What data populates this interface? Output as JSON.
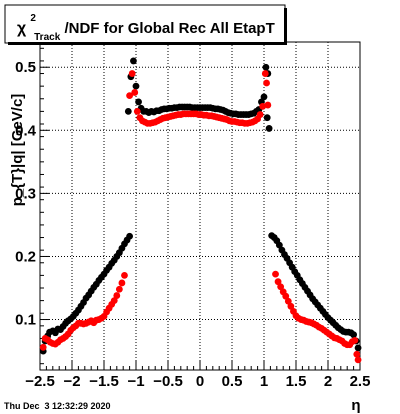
{
  "chart_data": {
    "type": "scatter",
    "title": {
      "main": "χ",
      "superscript": "2",
      "subscript": "Track",
      "suffix": "/NDF for Global Rec All EtapT"
    },
    "xlabel": "η",
    "ylabel": "p_{T}|q| [GeV/c]",
    "xlim": [
      -2.5,
      2.5
    ],
    "ylim": [
      0.02,
      0.54
    ],
    "x_ticks": [
      -2.5,
      -2,
      -1.5,
      -1,
      -0.5,
      0,
      0.5,
      1,
      1.5,
      2,
      2.5
    ],
    "x_tick_labels": [
      "−2.5",
      "−2",
      "−1.5",
      "−1",
      "−0.5",
      "0",
      "0.5",
      "1",
      "1.5",
      "2",
      "2.5"
    ],
    "y_ticks": [
      0.1,
      0.2,
      0.3,
      0.4,
      0.5
    ],
    "y_tick_labels": [
      "0.1",
      "0.2",
      "0.3",
      "0.4",
      "0.5"
    ],
    "grid": true,
    "series": [
      {
        "color": "#000000",
        "points": [
          [
            -2.45,
            0.05
          ],
          [
            -2.42,
            0.066
          ],
          [
            -2.38,
            0.074
          ],
          [
            -2.35,
            0.08
          ],
          [
            -2.3,
            0.082
          ],
          [
            -2.26,
            0.079
          ],
          [
            -2.22,
            0.085
          ],
          [
            -2.18,
            0.084
          ],
          [
            -2.14,
            0.089
          ],
          [
            -2.1,
            0.094
          ],
          [
            -2.06,
            0.098
          ],
          [
            -2.02,
            0.101
          ],
          [
            -1.98,
            0.105
          ],
          [
            -1.94,
            0.11
          ],
          [
            -1.9,
            0.115
          ],
          [
            -1.86,
            0.121
          ],
          [
            -1.82,
            0.127
          ],
          [
            -1.78,
            0.134
          ],
          [
            -1.74,
            0.139
          ],
          [
            -1.7,
            0.145
          ],
          [
            -1.66,
            0.151
          ],
          [
            -1.62,
            0.156
          ],
          [
            -1.58,
            0.162
          ],
          [
            -1.54,
            0.167
          ],
          [
            -1.5,
            0.172
          ],
          [
            -1.46,
            0.178
          ],
          [
            -1.42,
            0.183
          ],
          [
            -1.38,
            0.189
          ],
          [
            -1.34,
            0.194
          ],
          [
            -1.3,
            0.2
          ],
          [
            -1.26,
            0.206
          ],
          [
            -1.22,
            0.213
          ],
          [
            -1.18,
            0.22
          ],
          [
            -1.14,
            0.226
          ],
          [
            -1.1,
            0.232
          ],
          [
            -1.12,
            0.43
          ],
          [
            -1.08,
            0.485
          ],
          [
            -1.04,
            0.51
          ],
          [
            -1.0,
            0.47
          ],
          [
            -0.96,
            0.445
          ],
          [
            -0.92,
            0.435
          ],
          [
            -0.88,
            0.43
          ],
          [
            -0.84,
            0.43
          ],
          [
            -0.8,
            0.428
          ],
          [
            -0.76,
            0.43
          ],
          [
            -0.72,
            0.429
          ],
          [
            -0.68,
            0.431
          ],
          [
            -0.64,
            0.431
          ],
          [
            -0.6,
            0.433
          ],
          [
            -0.56,
            0.434
          ],
          [
            -0.52,
            0.434
          ],
          [
            -0.48,
            0.435
          ],
          [
            -0.44,
            0.435
          ],
          [
            -0.4,
            0.436
          ],
          [
            -0.36,
            0.436
          ],
          [
            -0.32,
            0.437
          ],
          [
            -0.28,
            0.437
          ],
          [
            -0.24,
            0.437
          ],
          [
            -0.2,
            0.437
          ],
          [
            -0.16,
            0.437
          ],
          [
            -0.12,
            0.436
          ],
          [
            -0.08,
            0.436
          ],
          [
            -0.04,
            0.436
          ],
          [
            0.0,
            0.436
          ],
          [
            0.04,
            0.436
          ],
          [
            0.08,
            0.436
          ],
          [
            0.12,
            0.436
          ],
          [
            0.16,
            0.436
          ],
          [
            0.2,
            0.435
          ],
          [
            0.24,
            0.434
          ],
          [
            0.28,
            0.434
          ],
          [
            0.32,
            0.433
          ],
          [
            0.36,
            0.432
          ],
          [
            0.4,
            0.43
          ],
          [
            0.44,
            0.428
          ],
          [
            0.48,
            0.427
          ],
          [
            0.52,
            0.426
          ],
          [
            0.56,
            0.426
          ],
          [
            0.6,
            0.425
          ],
          [
            0.64,
            0.425
          ],
          [
            0.68,
            0.425
          ],
          [
            0.72,
            0.425
          ],
          [
            0.76,
            0.425
          ],
          [
            0.8,
            0.426
          ],
          [
            0.84,
            0.427
          ],
          [
            0.88,
            0.43
          ],
          [
            0.92,
            0.433
          ],
          [
            0.96,
            0.445
          ],
          [
            1.0,
            0.453
          ],
          [
            1.03,
            0.5
          ],
          [
            1.06,
            0.49
          ],
          [
            1.05,
            0.42
          ],
          [
            1.08,
            0.403
          ],
          [
            1.12,
            0.233
          ],
          [
            1.16,
            0.23
          ],
          [
            1.2,
            0.225
          ],
          [
            1.24,
            0.218
          ],
          [
            1.28,
            0.21
          ],
          [
            1.32,
            0.203
          ],
          [
            1.36,
            0.197
          ],
          [
            1.4,
            0.19
          ],
          [
            1.44,
            0.183
          ],
          [
            1.48,
            0.176
          ],
          [
            1.52,
            0.17
          ],
          [
            1.56,
            0.163
          ],
          [
            1.6,
            0.157
          ],
          [
            1.64,
            0.151
          ],
          [
            1.68,
            0.145
          ],
          [
            1.72,
            0.139
          ],
          [
            1.76,
            0.133
          ],
          [
            1.8,
            0.128
          ],
          [
            1.84,
            0.123
          ],
          [
            1.88,
            0.118
          ],
          [
            1.92,
            0.113
          ],
          [
            1.96,
            0.108
          ],
          [
            2.0,
            0.103
          ],
          [
            2.04,
            0.099
          ],
          [
            2.08,
            0.095
          ],
          [
            2.12,
            0.091
          ],
          [
            2.16,
            0.087
          ],
          [
            2.2,
            0.084
          ],
          [
            2.24,
            0.081
          ],
          [
            2.28,
            0.08
          ],
          [
            2.32,
            0.08
          ],
          [
            2.36,
            0.079
          ],
          [
            2.4,
            0.076
          ],
          [
            2.44,
            0.066
          ],
          [
            2.47,
            0.055
          ]
        ]
      },
      {
        "color": "#ff0000",
        "points": [
          [
            -2.45,
            0.056
          ],
          [
            -2.42,
            0.07
          ],
          [
            -2.38,
            0.068
          ],
          [
            -2.34,
            0.064
          ],
          [
            -2.3,
            0.062
          ],
          [
            -2.26,
            0.061
          ],
          [
            -2.22,
            0.064
          ],
          [
            -2.18,
            0.068
          ],
          [
            -2.14,
            0.07
          ],
          [
            -2.1,
            0.073
          ],
          [
            -2.06,
            0.077
          ],
          [
            -2.02,
            0.083
          ],
          [
            -1.98,
            0.087
          ],
          [
            -1.94,
            0.09
          ],
          [
            -1.9,
            0.094
          ],
          [
            -1.86,
            0.094
          ],
          [
            -1.82,
            0.093
          ],
          [
            -1.78,
            0.094
          ],
          [
            -1.74,
            0.096
          ],
          [
            -1.7,
            0.098
          ],
          [
            -1.66,
            0.095
          ],
          [
            -1.62,
            0.099
          ],
          [
            -1.58,
            0.1
          ],
          [
            -1.54,
            0.102
          ],
          [
            -1.5,
            0.105
          ],
          [
            -1.46,
            0.112
          ],
          [
            -1.42,
            0.118
          ],
          [
            -1.38,
            0.124
          ],
          [
            -1.34,
            0.13
          ],
          [
            -1.3,
            0.138
          ],
          [
            -1.26,
            0.148
          ],
          [
            -1.22,
            0.158
          ],
          [
            -1.18,
            0.17
          ],
          [
            -1.1,
            0.455
          ],
          [
            -1.06,
            0.49
          ],
          [
            -1.02,
            0.46
          ],
          [
            -0.98,
            0.43
          ],
          [
            -0.94,
            0.42
          ],
          [
            -0.9,
            0.415
          ],
          [
            -0.86,
            0.413
          ],
          [
            -0.82,
            0.411
          ],
          [
            -0.78,
            0.411
          ],
          [
            -0.74,
            0.412
          ],
          [
            -0.7,
            0.413
          ],
          [
            -0.66,
            0.415
          ],
          [
            -0.62,
            0.417
          ],
          [
            -0.58,
            0.419
          ],
          [
            -0.54,
            0.42
          ],
          [
            -0.5,
            0.421
          ],
          [
            -0.46,
            0.422
          ],
          [
            -0.42,
            0.423
          ],
          [
            -0.38,
            0.424
          ],
          [
            -0.34,
            0.425
          ],
          [
            -0.3,
            0.425
          ],
          [
            -0.26,
            0.426
          ],
          [
            -0.22,
            0.426
          ],
          [
            -0.18,
            0.426
          ],
          [
            -0.14,
            0.426
          ],
          [
            -0.1,
            0.426
          ],
          [
            -0.06,
            0.426
          ],
          [
            -0.02,
            0.425
          ],
          [
            0.02,
            0.425
          ],
          [
            0.06,
            0.424
          ],
          [
            0.1,
            0.424
          ],
          [
            0.14,
            0.423
          ],
          [
            0.18,
            0.423
          ],
          [
            0.22,
            0.422
          ],
          [
            0.26,
            0.421
          ],
          [
            0.3,
            0.42
          ],
          [
            0.34,
            0.419
          ],
          [
            0.38,
            0.418
          ],
          [
            0.42,
            0.417
          ],
          [
            0.46,
            0.415
          ],
          [
            0.5,
            0.414
          ],
          [
            0.54,
            0.414
          ],
          [
            0.58,
            0.413
          ],
          [
            0.62,
            0.412
          ],
          [
            0.66,
            0.412
          ],
          [
            0.7,
            0.411
          ],
          [
            0.74,
            0.411
          ],
          [
            0.78,
            0.412
          ],
          [
            0.82,
            0.413
          ],
          [
            0.86,
            0.415
          ],
          [
            0.9,
            0.418
          ],
          [
            0.94,
            0.425
          ],
          [
            0.98,
            0.438
          ],
          [
            1.02,
            0.49
          ],
          [
            1.04,
            0.475
          ],
          [
            1.06,
            0.44
          ],
          [
            1.18,
            0.172
          ],
          [
            1.22,
            0.16
          ],
          [
            1.26,
            0.152
          ],
          [
            1.3,
            0.144
          ],
          [
            1.34,
            0.137
          ],
          [
            1.38,
            0.129
          ],
          [
            1.42,
            0.121
          ],
          [
            1.46,
            0.113
          ],
          [
            1.5,
            0.106
          ],
          [
            1.54,
            0.102
          ],
          [
            1.58,
            0.1
          ],
          [
            1.62,
            0.099
          ],
          [
            1.66,
            0.097
          ],
          [
            1.7,
            0.096
          ],
          [
            1.74,
            0.095
          ],
          [
            1.78,
            0.093
          ],
          [
            1.82,
            0.091
          ],
          [
            1.86,
            0.088
          ],
          [
            1.9,
            0.086
          ],
          [
            1.94,
            0.083
          ],
          [
            1.98,
            0.08
          ],
          [
            2.02,
            0.077
          ],
          [
            2.06,
            0.074
          ],
          [
            2.1,
            0.071
          ],
          [
            2.14,
            0.07
          ],
          [
            2.18,
            0.068
          ],
          [
            2.22,
            0.066
          ],
          [
            2.26,
            0.062
          ],
          [
            2.3,
            0.06
          ],
          [
            2.34,
            0.06
          ],
          [
            2.38,
            0.065
          ],
          [
            2.42,
            0.067
          ],
          [
            2.45,
            0.045
          ],
          [
            2.47,
            0.036
          ]
        ]
      }
    ],
    "timestamp": "Thu Dec  3 12:32:29 2020"
  }
}
